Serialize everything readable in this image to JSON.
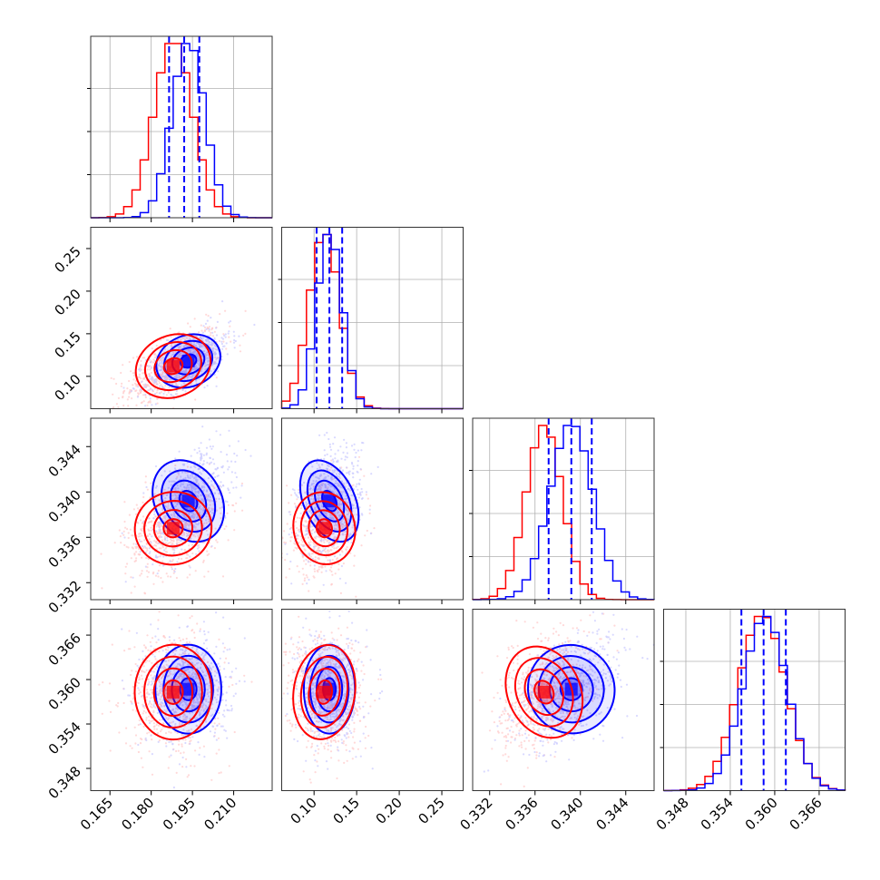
{
  "chart_data": {
    "type": "corner",
    "title": "",
    "grid": true,
    "legend": "none",
    "series": [
      {
        "color": "#0000ff",
        "style": "filled contours with density points"
      },
      {
        "color": "#ff0000",
        "style": "contour lines with density points"
      }
    ],
    "colors": {
      "blue": "#0000ff",
      "red": "#ff0000",
      "blue_light": "#c9c9ff",
      "red_light": "#ffc9c9"
    },
    "parameters": [
      {
        "range": [
          0.158,
          0.224
        ],
        "ticks": [
          0.165,
          0.18,
          0.195,
          0.21
        ],
        "tick_labels": [
          "0.165",
          "0.180",
          "0.195",
          "0.210"
        ],
        "quantiles": [
          0.1865,
          0.192,
          0.1975
        ],
        "blue": {
          "mean": 0.1935,
          "sd": 0.006
        },
        "red": {
          "mean": 0.188,
          "sd": 0.007
        }
      },
      {
        "range": [
          0.062,
          0.275
        ],
        "ticks": [
          0.1,
          0.15,
          0.2,
          0.25
        ],
        "tick_labels": [
          "0.10",
          "0.15",
          "0.20",
          "0.25"
        ],
        "quantiles": [
          0.103,
          0.118,
          0.133
        ],
        "blue": {
          "mean": 0.118,
          "sd": 0.015
        },
        "red": {
          "mean": 0.112,
          "sd": 0.018
        }
      },
      {
        "range": [
          0.3305,
          0.3465
        ],
        "ticks": [
          0.332,
          0.336,
          0.34,
          0.344
        ],
        "tick_labels": [
          "0.332",
          "0.336",
          "0.340",
          "0.344"
        ],
        "quantiles": [
          0.3372,
          0.3392,
          0.341
        ],
        "blue": {
          "mean": 0.3392,
          "sd": 0.0019
        },
        "red": {
          "mean": 0.3368,
          "sd": 0.0016
        }
      },
      {
        "range": [
          0.345,
          0.3695
        ],
        "ticks": [
          0.348,
          0.354,
          0.36,
          0.366
        ],
        "tick_labels": [
          "0.348",
          "0.354",
          "0.360",
          "0.366"
        ],
        "quantiles": [
          0.3555,
          0.3585,
          0.3615
        ],
        "blue": {
          "mean": 0.3587,
          "sd": 0.003
        },
        "red": {
          "mean": 0.3583,
          "sd": 0.0032
        }
      }
    ],
    "correlations": {
      "1-0": {
        "blue": 0.6,
        "red": 0.6
      },
      "2-0": {
        "blue": 0.5,
        "red": 0.3
      },
      "2-1": {
        "blue": 0.3,
        "red": 0.2
      },
      "3-0": {
        "blue": 0.0,
        "red": 0.0
      },
      "3-1": {
        "blue": 0.0,
        "red": -0.1
      },
      "3-2": {
        "blue": 0.5,
        "red": 0.4
      }
    }
  }
}
